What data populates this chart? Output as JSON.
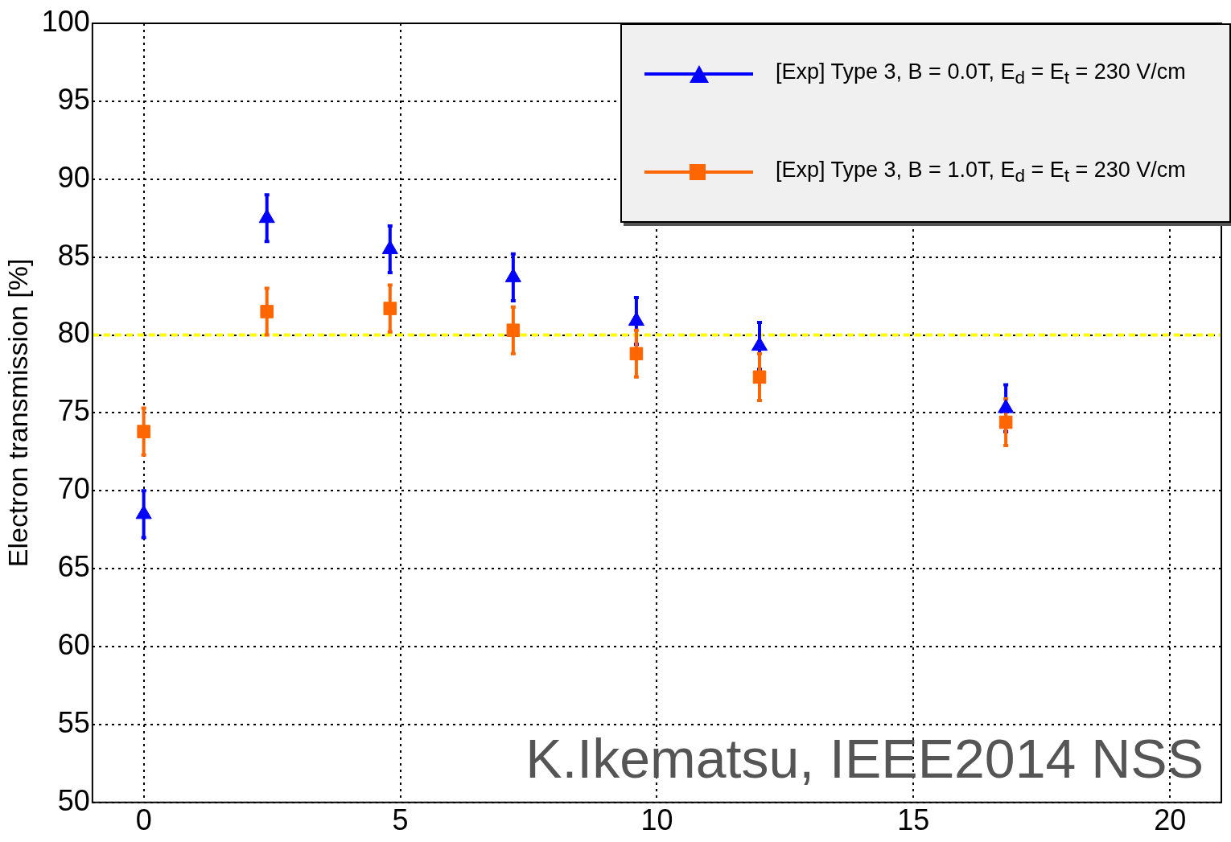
{
  "chart_data": {
    "type": "scatter",
    "ylabel": "Electron transmission [%]",
    "x": [
      0,
      2.4,
      4.8,
      7.2,
      9.6,
      12,
      16.8
    ],
    "series": [
      {
        "name": "[Exp] Type 3, B = 0.0T, E$_{d}$ = E$_{t}$ = 230 V/cm",
        "color": "#0000ff",
        "marker": "triangle",
        "values": [
          68.5,
          87.5,
          85.5,
          83.7,
          80.9,
          79.3,
          75.3
        ],
        "errors": [
          1.5,
          1.5,
          1.5,
          1.5,
          1.5,
          1.5,
          1.5
        ]
      },
      {
        "name": "[Exp] Type 3, B = 1.0T, E$_{d}$ = E$_{t}$ = 230 V/cm",
        "color": "#ff6600",
        "marker": "square",
        "values": [
          73.8,
          81.5,
          81.7,
          80.3,
          78.8,
          77.3,
          74.4
        ],
        "errors": [
          1.5,
          1.5,
          1.5,
          1.5,
          1.5,
          1.5,
          1.5
        ]
      }
    ],
    "xlim": [
      -1,
      21
    ],
    "xticks": [
      0,
      5,
      10,
      15,
      20
    ],
    "ylim": [
      50,
      100
    ],
    "yticks": [
      50,
      55,
      60,
      65,
      70,
      75,
      80,
      85,
      90,
      95,
      100
    ],
    "ref_lines": [
      {
        "axis": "y",
        "value": 80,
        "color": "#ffff00",
        "line_style": "dashed"
      }
    ],
    "annotations": [
      "K.Ikematsu, IEEE2014 NSS"
    ],
    "grid": true,
    "legend": "top right"
  }
}
